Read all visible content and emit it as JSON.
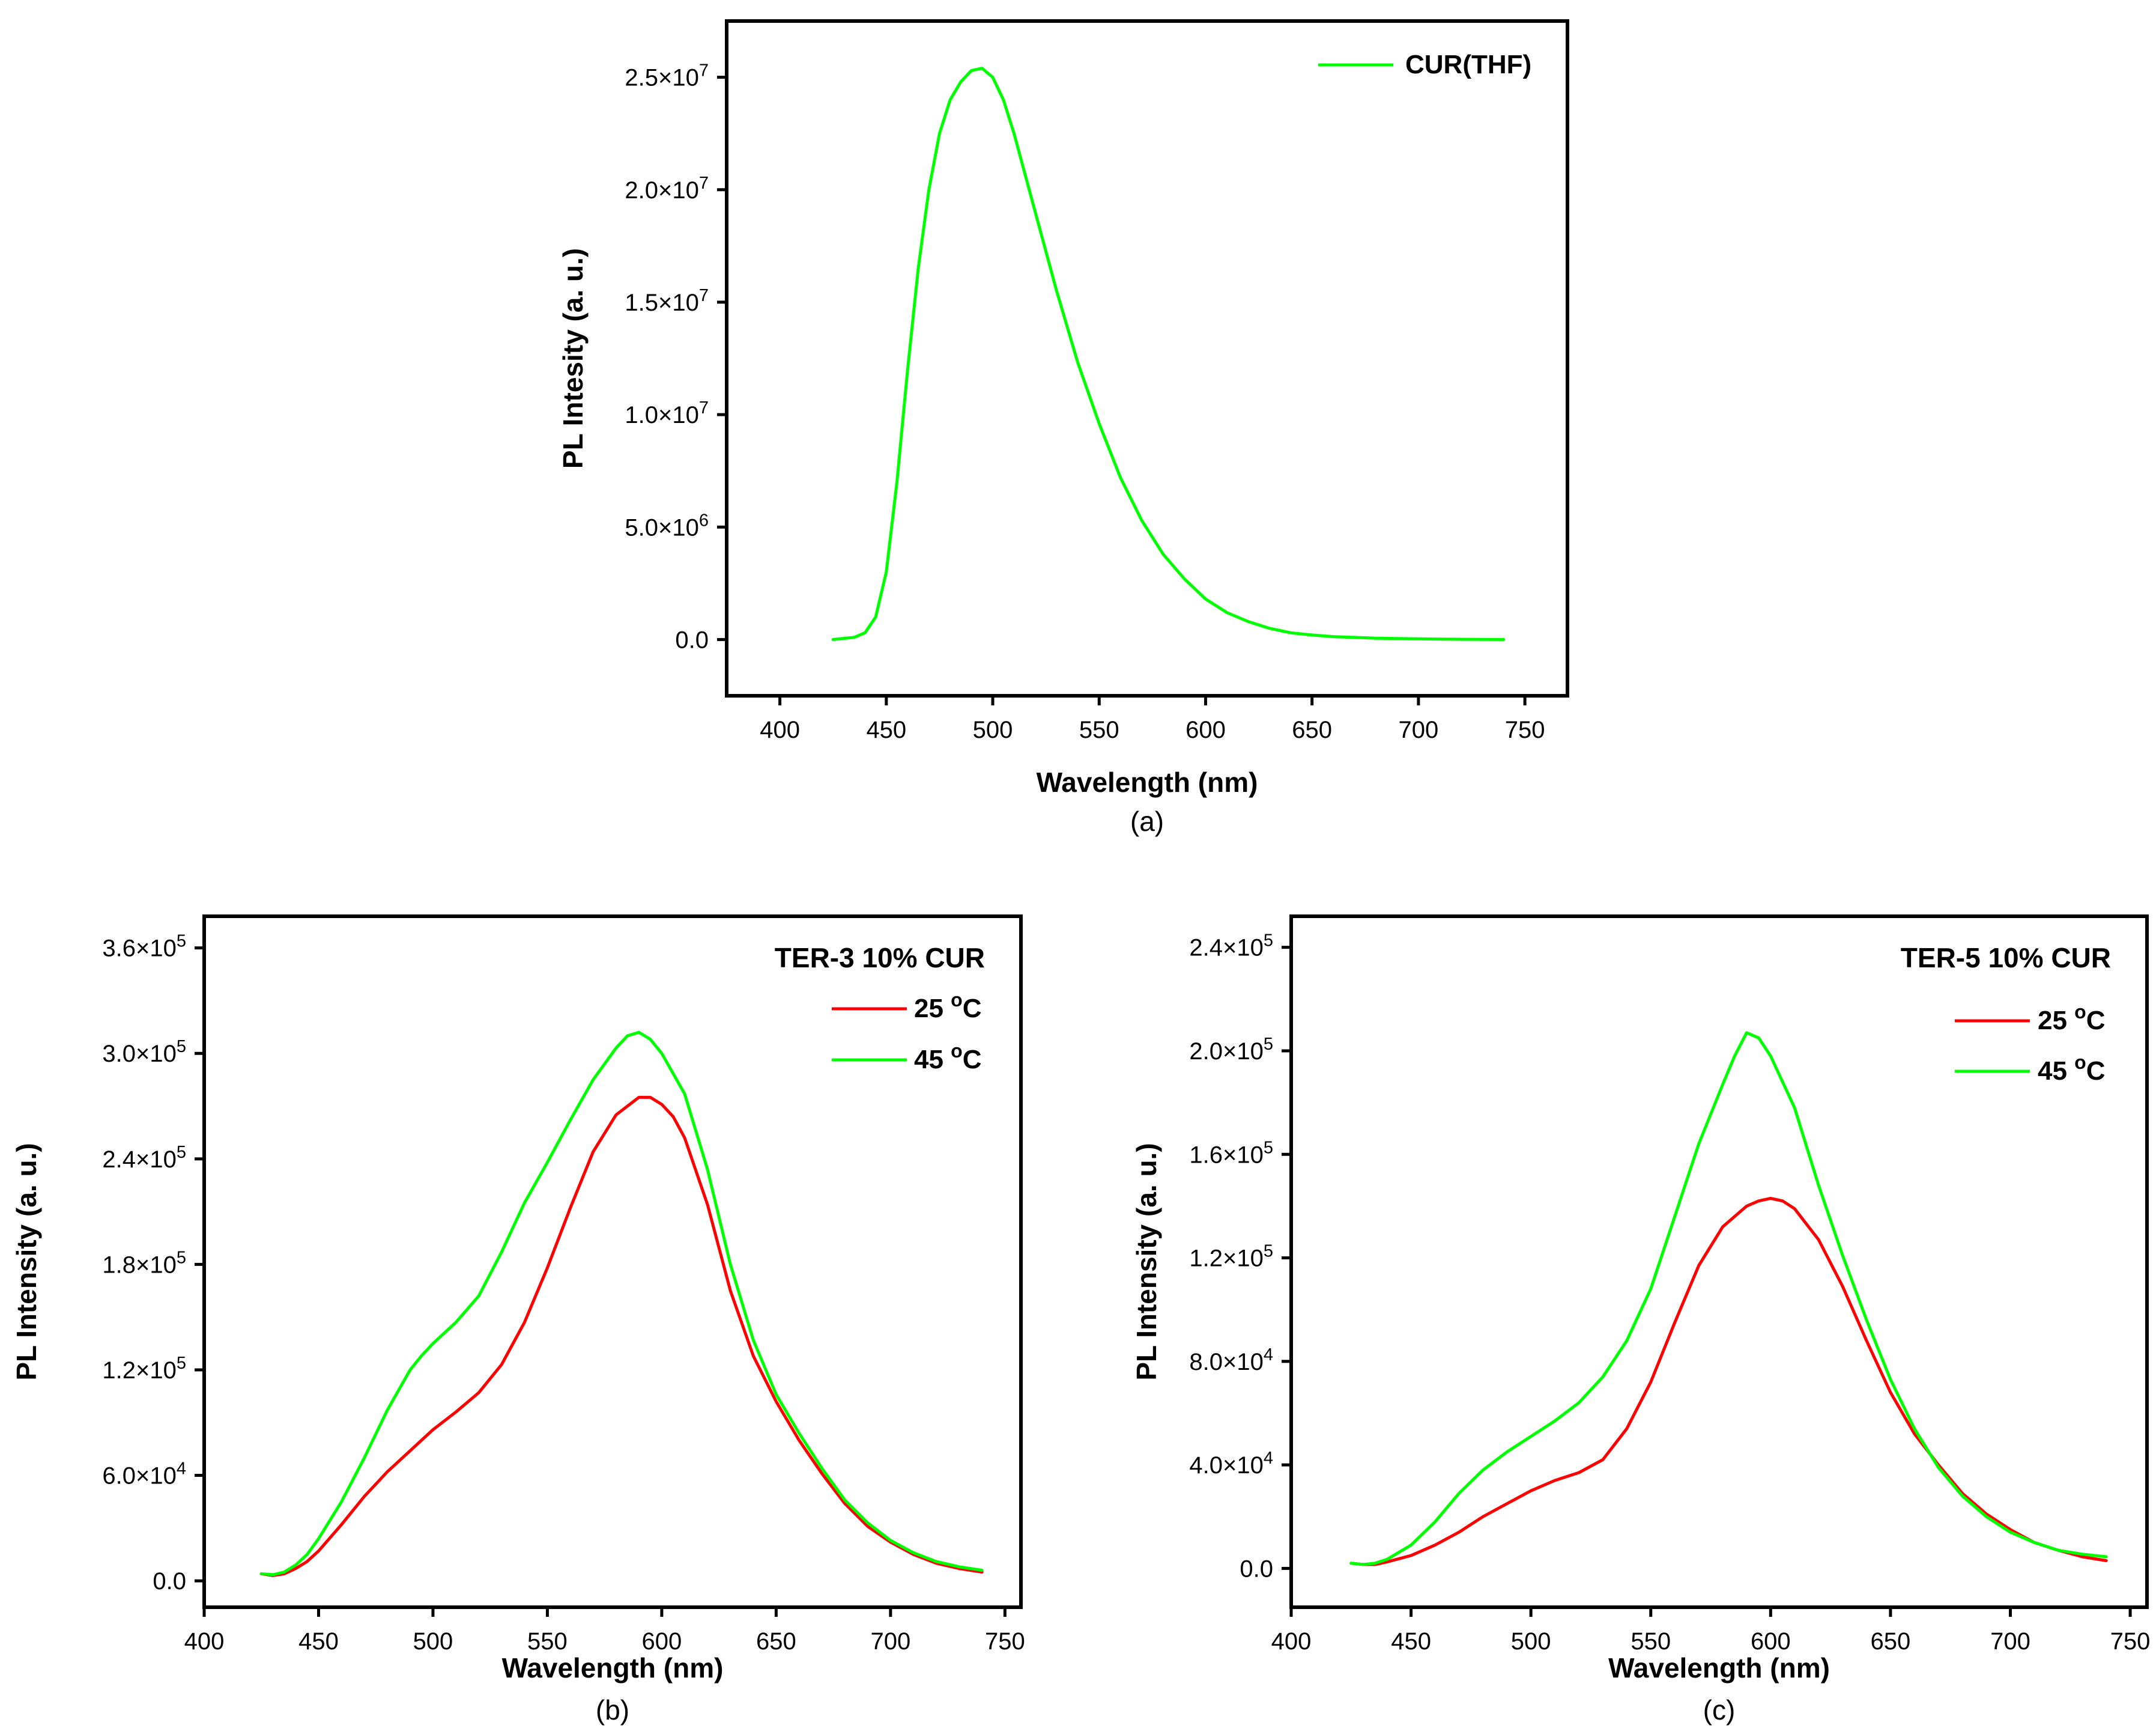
{
  "chart_data": [
    {
      "id": "a",
      "type": "line",
      "caption": "(a)",
      "xlabel": "Wavelength (nm)",
      "ylabel": "PL Intesity (a. u.)",
      "xlim": [
        375,
        770
      ],
      "ylim": [
        -2500000,
        27500000
      ],
      "xticks": [
        400,
        450,
        500,
        550,
        600,
        650,
        700,
        750
      ],
      "yticks": [
        {
          "value": 0,
          "label": "0.0",
          "exp": ""
        },
        {
          "value": 5000000,
          "label": "5.0×10",
          "exp": "6"
        },
        {
          "value": 10000000,
          "label": "1.0×10",
          "exp": "7"
        },
        {
          "value": 15000000,
          "label": "1.5×10",
          "exp": "7"
        },
        {
          "value": 20000000,
          "label": "2.0×10",
          "exp": "7"
        },
        {
          "value": 25000000,
          "label": "2.5×10",
          "exp": "7"
        }
      ],
      "legend_title": "",
      "legend_position": "top-right",
      "series": [
        {
          "name": "CUR(THF)",
          "color": "#00ff00",
          "x": [
            425,
            435,
            440,
            445,
            450,
            455,
            460,
            465,
            470,
            475,
            480,
            485,
            490,
            495,
            500,
            505,
            510,
            520,
            530,
            540,
            550,
            560,
            570,
            580,
            590,
            600,
            610,
            620,
            630,
            640,
            650,
            660,
            680,
            700,
            720,
            740
          ],
          "y": [
            0,
            100000,
            300000,
            1000000,
            3000000,
            7000000,
            12000000,
            16500000,
            20000000,
            22500000,
            24000000,
            24800000,
            25300000,
            25400000,
            25000000,
            24000000,
            22500000,
            19000000,
            15500000,
            12300000,
            9600000,
            7200000,
            5300000,
            3800000,
            2700000,
            1800000,
            1200000,
            800000,
            500000,
            300000,
            200000,
            130000,
            60000,
            30000,
            10000,
            0
          ]
        }
      ]
    },
    {
      "id": "b",
      "type": "line",
      "caption": "(b)",
      "xlabel": "Wavelength (nm)",
      "ylabel": "PL Intensity (a. u.)",
      "xlim": [
        400,
        757
      ],
      "ylim": [
        -15000,
        378000
      ],
      "xticks": [
        400,
        450,
        500,
        550,
        600,
        650,
        700,
        750
      ],
      "yticks": [
        {
          "value": 0,
          "label": "0.0",
          "exp": ""
        },
        {
          "value": 60000,
          "label": "6.0×10",
          "exp": "4"
        },
        {
          "value": 120000,
          "label": "1.2×10",
          "exp": "5"
        },
        {
          "value": 180000,
          "label": "1.8×10",
          "exp": "5"
        },
        {
          "value": 240000,
          "label": "2.4×10",
          "exp": "5"
        },
        {
          "value": 300000,
          "label": "3.0×10",
          "exp": "5"
        },
        {
          "value": 360000,
          "label": "3.6×10",
          "exp": "5"
        }
      ],
      "legend_title": "TER-3 10% CUR",
      "legend_position": "top-right",
      "series": [
        {
          "name": "25 °C",
          "color": "#ff0000",
          "x": [
            425,
            430,
            435,
            440,
            445,
            450,
            460,
            470,
            480,
            490,
            500,
            510,
            520,
            530,
            540,
            550,
            560,
            570,
            580,
            590,
            595,
            600,
            605,
            610,
            620,
            630,
            640,
            650,
            660,
            670,
            680,
            690,
            700,
            710,
            720,
            730,
            740
          ],
          "y": [
            4000,
            3000,
            4000,
            7000,
            11000,
            17000,
            32000,
            48000,
            62000,
            74000,
            86000,
            96000,
            107000,
            123000,
            147000,
            178000,
            212000,
            244000,
            265000,
            275000,
            275000,
            271000,
            264000,
            252000,
            214000,
            165000,
            128000,
            102000,
            80000,
            61000,
            44000,
            31000,
            22000,
            15000,
            10000,
            7000,
            5000
          ]
        },
        {
          "name": "45 °C",
          "color": "#00ff00",
          "x": [
            425,
            430,
            435,
            440,
            445,
            450,
            460,
            470,
            480,
            490,
            495,
            500,
            510,
            520,
            530,
            540,
            550,
            560,
            570,
            580,
            585,
            590,
            595,
            600,
            610,
            620,
            630,
            640,
            650,
            660,
            670,
            680,
            690,
            700,
            710,
            720,
            730,
            740
          ],
          "y": [
            4000,
            3500,
            5000,
            9000,
            15000,
            24000,
            45000,
            70000,
            97000,
            120000,
            128000,
            135000,
            147000,
            162000,
            187000,
            215000,
            238000,
            262000,
            285000,
            303000,
            310000,
            312000,
            308000,
            300000,
            277000,
            234000,
            180000,
            137000,
            106000,
            84000,
            64000,
            46000,
            33000,
            23000,
            16000,
            11000,
            8000,
            6000
          ]
        }
      ]
    },
    {
      "id": "c",
      "type": "line",
      "caption": "(c)",
      "xlabel": "Wavelength (nm)",
      "ylabel": "PL Intensity (a. u.)",
      "xlim": [
        400,
        757
      ],
      "ylim": [
        -15000,
        252000
      ],
      "xticks": [
        400,
        450,
        500,
        550,
        600,
        650,
        700,
        750
      ],
      "yticks": [
        {
          "value": 0,
          "label": "0.0",
          "exp": ""
        },
        {
          "value": 40000,
          "label": "4.0×10",
          "exp": "4"
        },
        {
          "value": 80000,
          "label": "8.0×10",
          "exp": "4"
        },
        {
          "value": 120000,
          "label": "1.2×10",
          "exp": "5"
        },
        {
          "value": 160000,
          "label": "1.6×10",
          "exp": "5"
        },
        {
          "value": 200000,
          "label": "2.0×10",
          "exp": "5"
        },
        {
          "value": 240000,
          "label": "2.4×10",
          "exp": "5"
        }
      ],
      "legend_title": "TER-5 10% CUR",
      "legend_position": "top-right",
      "series": [
        {
          "name": "25 °C",
          "color": "#ff0000",
          "x": [
            425,
            430,
            435,
            440,
            450,
            460,
            470,
            480,
            490,
            500,
            510,
            520,
            530,
            540,
            550,
            560,
            570,
            580,
            590,
            595,
            600,
            605,
            610,
            620,
            630,
            640,
            650,
            660,
            670,
            680,
            690,
            700,
            710,
            720,
            730,
            740
          ],
          "y": [
            2000,
            1500,
            1500,
            2500,
            5000,
            9000,
            14000,
            20000,
            25000,
            30000,
            34000,
            37000,
            42000,
            54000,
            72000,
            95000,
            117000,
            132000,
            140000,
            142000,
            143000,
            142000,
            139000,
            127000,
            109000,
            88000,
            68000,
            52000,
            40000,
            29000,
            21000,
            15000,
            10000,
            7000,
            4500,
            3000
          ]
        },
        {
          "name": "45 °C",
          "color": "#00ff00",
          "x": [
            425,
            430,
            435,
            440,
            450,
            460,
            470,
            480,
            490,
            500,
            510,
            520,
            530,
            540,
            550,
            560,
            570,
            580,
            585,
            590,
            595,
            600,
            610,
            620,
            630,
            640,
            650,
            660,
            670,
            680,
            690,
            700,
            710,
            720,
            730,
            740
          ],
          "y": [
            2000,
            1500,
            2000,
            3500,
            9000,
            18000,
            29000,
            38000,
            45000,
            51000,
            57000,
            64000,
            74000,
            88000,
            108000,
            136000,
            164000,
            187000,
            198000,
            207000,
            205000,
            198000,
            178000,
            148000,
            121000,
            96000,
            73000,
            54000,
            39000,
            28000,
            20000,
            14000,
            10000,
            7000,
            5500,
            4500
          ]
        }
      ]
    }
  ]
}
